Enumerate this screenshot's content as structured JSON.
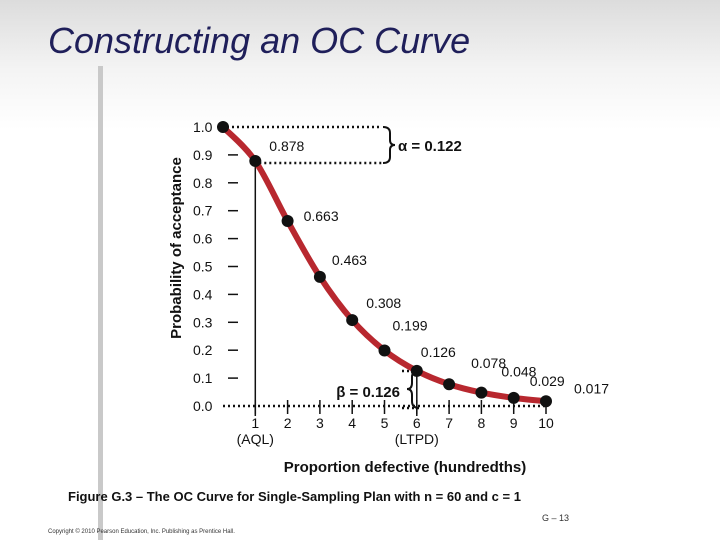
{
  "slide": {
    "title": "Constructing an OC Curve",
    "caption": "Figure G.3 – The OC Curve for Single-Sampling Plan with n = 60 and c = 1",
    "slide_number": "G – 13",
    "copyright": "Copyright © 2010 Pearson Education, Inc. Publishing as Prentice Hall."
  },
  "chart_data": {
    "type": "line",
    "title": "",
    "xlabel": "Proportion defective (hundredths)",
    "ylabel": "Probability of acceptance",
    "xlim": [
      0,
      10
    ],
    "ylim": [
      0,
      1
    ],
    "x_ticks": [
      "1",
      "2",
      "3",
      "4",
      "5",
      "6",
      "7",
      "8",
      "9",
      "10"
    ],
    "x_sublabels": [
      {
        "x": 1,
        "text": "(AQL)"
      },
      {
        "x": 6,
        "text": "(LTPD)"
      }
    ],
    "y_ticks": [
      "0.0",
      "0.1",
      "0.2",
      "0.3",
      "0.4",
      "0.5",
      "0.6",
      "0.7",
      "0.8",
      "0.9",
      "1.0"
    ],
    "color": "#b8282f",
    "series": [
      {
        "name": "OC curve",
        "x": [
          0,
          1,
          2,
          3,
          4,
          5,
          6,
          7,
          8,
          9,
          10
        ],
        "y": [
          1.0,
          0.878,
          0.663,
          0.463,
          0.308,
          0.199,
          0.126,
          0.078,
          0.048,
          0.029,
          0.017
        ]
      }
    ],
    "data_labels": [
      "",
      "0.878",
      "0.663",
      "0.463",
      "0.308",
      "0.199",
      "0.126",
      "0.078",
      "0.048",
      "0.029",
      "0.017"
    ],
    "annotations": {
      "alpha": "α = 0.122",
      "beta": "β = 0.126"
    }
  }
}
